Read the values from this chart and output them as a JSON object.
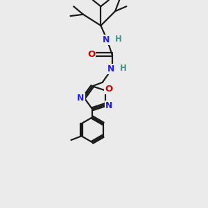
{
  "bg_color": "#ebebeb",
  "bond_color": "#1a1a1a",
  "N_color": "#2020ee",
  "O_color": "#cc0000",
  "H_color": "#3a9988",
  "bond_width": 1.6,
  "figsize": [
    3.0,
    3.0
  ],
  "dpi": 100,
  "xlim": [
    0,
    10
  ],
  "ylim": [
    0,
    13
  ]
}
